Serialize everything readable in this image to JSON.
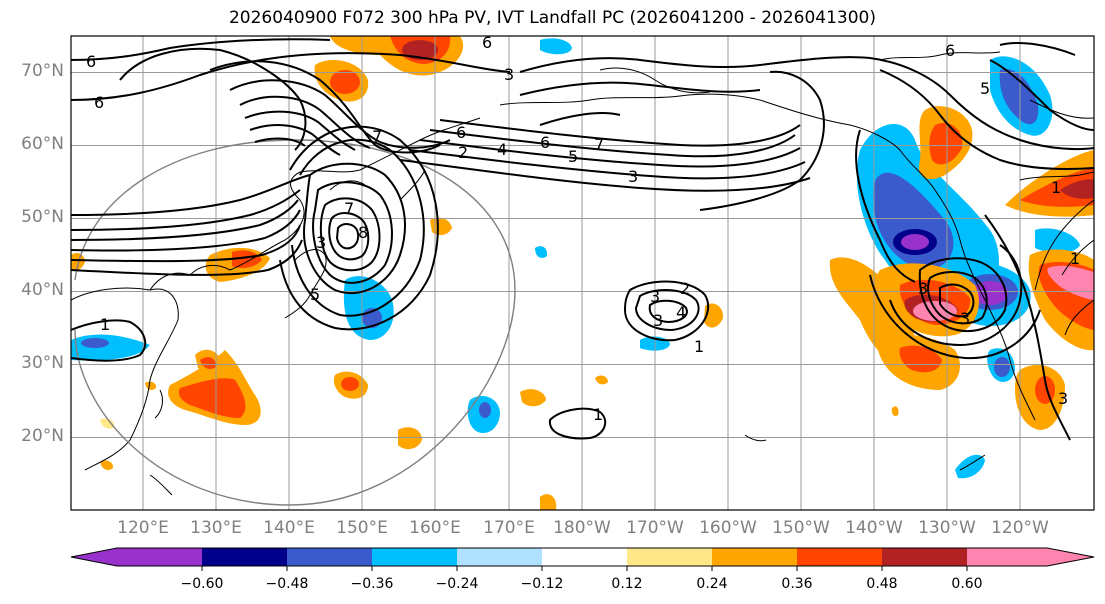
{
  "title": "2026040900 F072 300 hPa PV, IVT Landfall PC (2026041200 - 2026041300)",
  "colors": {
    "c_n060": "#9932CC",
    "c_n048": "#00008B",
    "c_n036": "#3B5BCD",
    "c_n024": "#00BFFF",
    "c_n012": "#B0E2FF",
    "c_0": "#FFFFFF",
    "c_p012": "#FFE88A",
    "c_p024": "#FFA500",
    "c_p036": "#FF4500",
    "c_p048": "#B22222",
    "c_p060": "#FF85B0"
  },
  "lat_labels": [
    "70°N",
    "60°N",
    "50°N",
    "40°N",
    "30°N",
    "20°N"
  ],
  "lon_labels": [
    "120°E",
    "130°E",
    "140°E",
    "150°E",
    "160°E",
    "170°E",
    "180°W",
    "170°W",
    "160°W",
    "150°W",
    "140°W",
    "130°W",
    "120°W"
  ],
  "colorbar": {
    "ticks": [
      "−0.60",
      "−0.48",
      "−0.36",
      "−0.24",
      "−0.12",
      "0.12",
      "0.24",
      "0.36",
      "0.48",
      "0.60"
    ]
  },
  "contour_labels": [
    "6",
    "6",
    "6",
    "3",
    "7",
    "2",
    "4",
    "6",
    "5",
    "7",
    "3",
    "6",
    "7",
    "8",
    "5",
    "3",
    "1",
    "3",
    "2",
    "4",
    "3",
    "1",
    "1",
    "6",
    "5",
    "3",
    "1",
    "3",
    "1",
    "3"
  ]
}
